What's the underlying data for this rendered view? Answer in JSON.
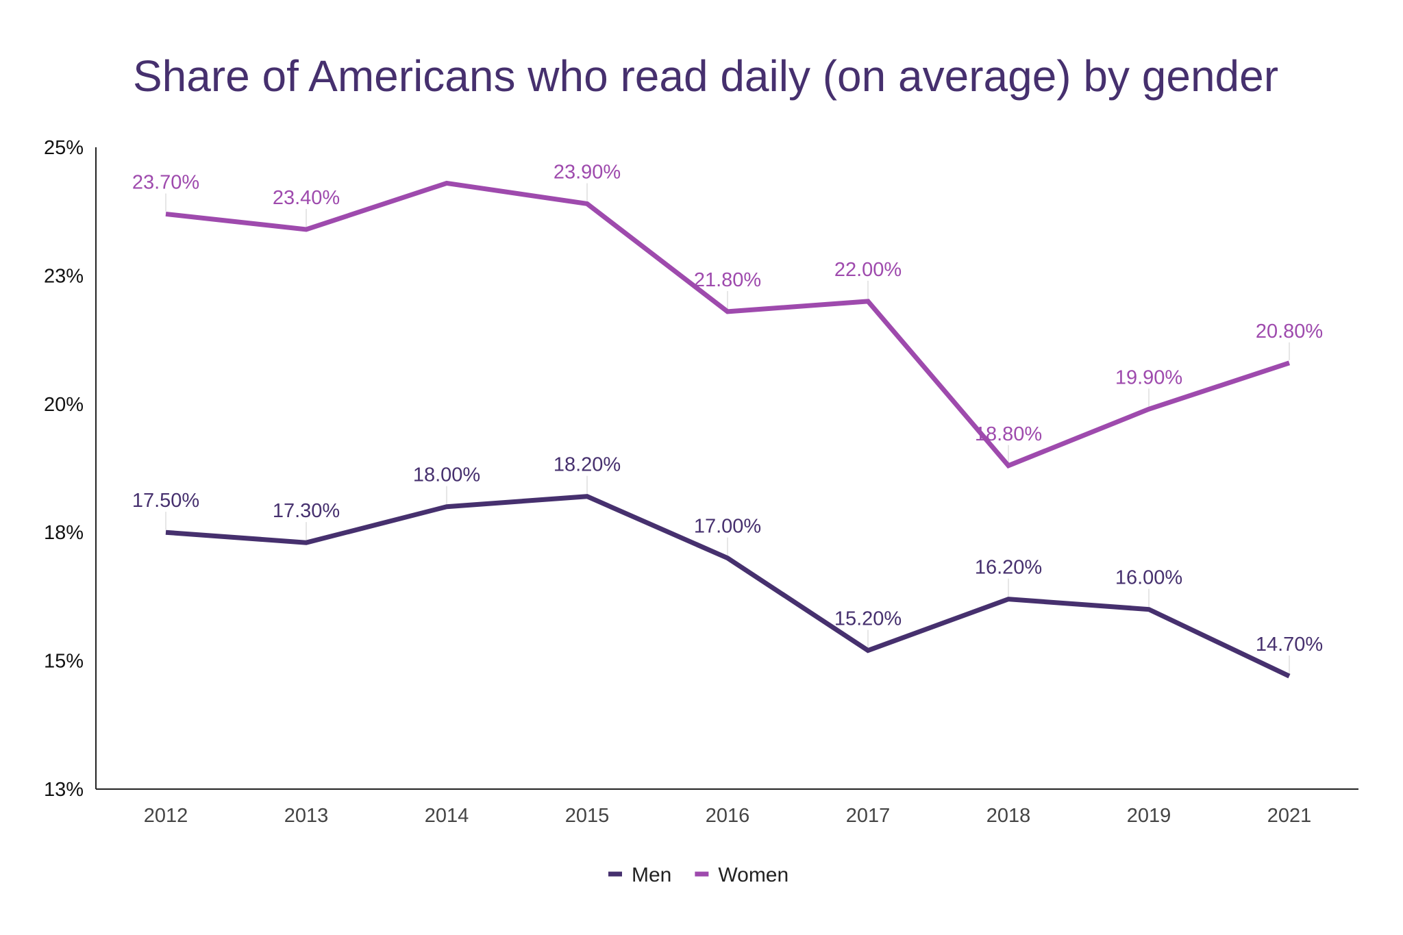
{
  "chart_data": {
    "type": "line",
    "title": "Share of Americans who read daily (on average) by gender",
    "xlabel": "",
    "ylabel": "",
    "categories": [
      "2012",
      "2013",
      "2014",
      "2015",
      "2016",
      "2017",
      "2018",
      "2019",
      "2021"
    ],
    "ylim": [
      12.5,
      25
    ],
    "yticks": [
      12.5,
      15,
      17.5,
      20,
      22.5,
      25
    ],
    "ytick_labels": [
      "13%",
      "15%",
      "18%",
      "20%",
      "23%",
      "25%"
    ],
    "grid": false,
    "legend": "bottom",
    "series": [
      {
        "name": "Men",
        "color": "#46306e",
        "values": [
          17.5,
          17.3,
          18.0,
          18.2,
          17.0,
          15.2,
          16.2,
          16.0,
          14.7
        ],
        "labels": [
          "17.50%",
          "17.30%",
          "18.00%",
          "18.20%",
          "17.00%",
          "15.20%",
          "16.20%",
          "16.00%",
          "14.70%"
        ]
      },
      {
        "name": "Women",
        "color": "#9e4aad",
        "values": [
          23.7,
          23.4,
          24.3,
          23.9,
          21.8,
          22.0,
          18.8,
          19.9,
          20.8
        ],
        "labels": [
          "23.70%",
          "23.40%",
          null,
          "23.90%",
          "21.80%",
          "22.00%",
          "18.80%",
          "19.90%",
          "20.80%"
        ]
      }
    ]
  }
}
